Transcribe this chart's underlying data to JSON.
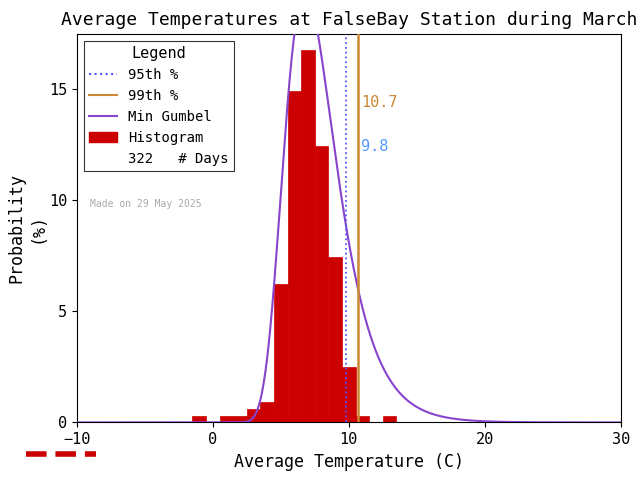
{
  "title": "Average Temperatures at FalseBay Station during March",
  "xlabel": "Average Temperature (C)",
  "ylabel": "Probability\n(%)",
  "xlim": [
    -10,
    30
  ],
  "ylim": [
    0,
    17.5
  ],
  "yticks": [
    0,
    5,
    10,
    15
  ],
  "xticks": [
    -10,
    0,
    10,
    20,
    30
  ],
  "bar_centers": [
    -1,
    1,
    2,
    3,
    4,
    5,
    6,
    7,
    8,
    9,
    10,
    11,
    13
  ],
  "hist_values": [
    0.31,
    0.31,
    0.31,
    0.62,
    0.93,
    6.21,
    14.91,
    16.77,
    12.42,
    7.45,
    2.48,
    0.31,
    0.31
  ],
  "bar_color": "#cc0000",
  "bar_edge_color": "#cc0000",
  "percentile_95": 9.8,
  "percentile_99": 10.7,
  "percentile_95_color": "#5555ff",
  "percentile_99_color": "#cc8833",
  "gumbel_color": "#8844cc",
  "gumbel_mu": 6.8,
  "gumbel_beta": 1.9,
  "n_days": 322,
  "made_on": "Made on 29 May 2025",
  "legend_title": "Legend",
  "title_fontsize": 13,
  "axis_fontsize": 12,
  "tick_fontsize": 11,
  "annotation_95_color": "#5599ff",
  "annotation_99_color": "#cc8833",
  "background_color": "#ffffff",
  "font_family": "monospace",
  "legend_fontsize": 10,
  "made_on_color": "#aaaaaa"
}
